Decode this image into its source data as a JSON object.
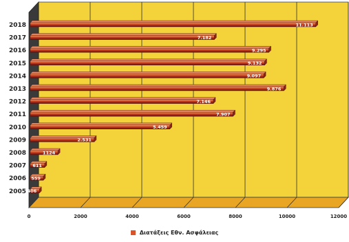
{
  "chart_data": {
    "type": "bar",
    "orientation": "horizontal",
    "categories": [
      "2018",
      "2017",
      "2016",
      "2015",
      "2014",
      "2013",
      "2012",
      "2011",
      "2010",
      "2009",
      "2008",
      "2007",
      "2006",
      "2005"
    ],
    "series": [
      {
        "name": "Διατάξεις  Εθν. Ασφάλειας",
        "values": [
          11113,
          7182,
          9295,
          9132,
          9097,
          9876,
          7146,
          7907,
          5459,
          2531,
          1124,
          611,
          559,
          406
        ],
        "labels": [
          "11.113",
          "7.182",
          "9.295",
          "9.132",
          "9.097",
          "9.876",
          "7.146",
          "7.907",
          "5.459",
          "2.531",
          "1124",
          "611",
          "559",
          "406"
        ]
      }
    ],
    "x_ticks": [
      "0",
      "2000",
      "4000",
      "6000",
      "8000",
      "10000",
      "12000"
    ],
    "xlim": [
      0,
      12000
    ],
    "grid": true,
    "legend_position": "bottom",
    "colors": {
      "bar": "#b5341b",
      "wall": "#f3d23a",
      "floor": "#e9a524",
      "side": "#3a3a3a",
      "legend_swatch": "#d9542b"
    }
  }
}
